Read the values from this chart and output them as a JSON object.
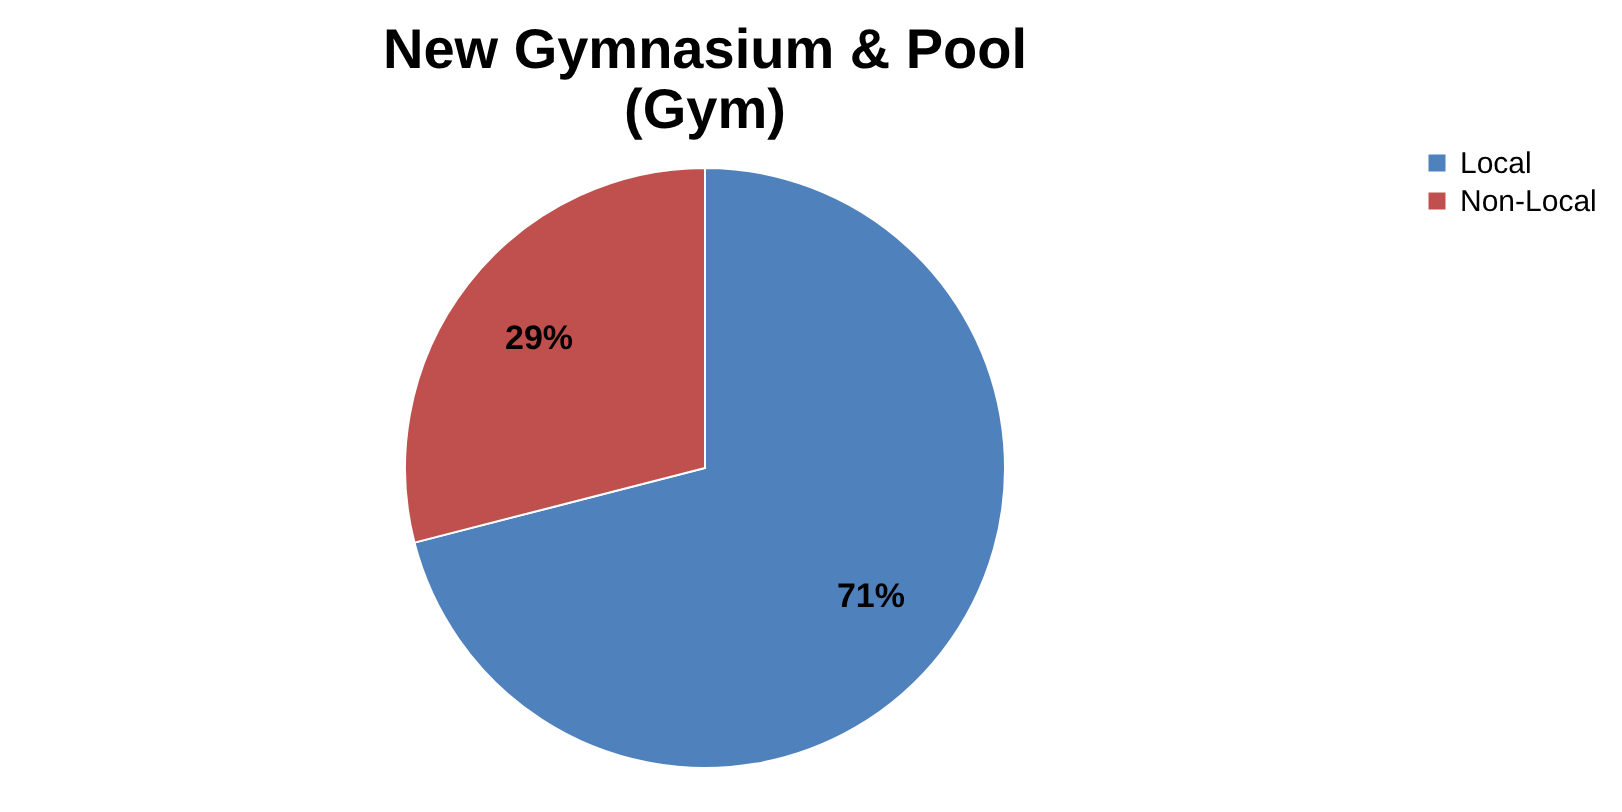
{
  "chart_data": {
    "type": "pie",
    "title": "New Gymnasium & Pool\n(Gym)",
    "categories": [
      "Local",
      "Non-Local"
    ],
    "values": [
      71,
      29
    ],
    "colors": [
      "#4f81bd",
      "#c0504d"
    ],
    "value_labels": [
      "71%",
      "29%"
    ],
    "legend": "right"
  }
}
